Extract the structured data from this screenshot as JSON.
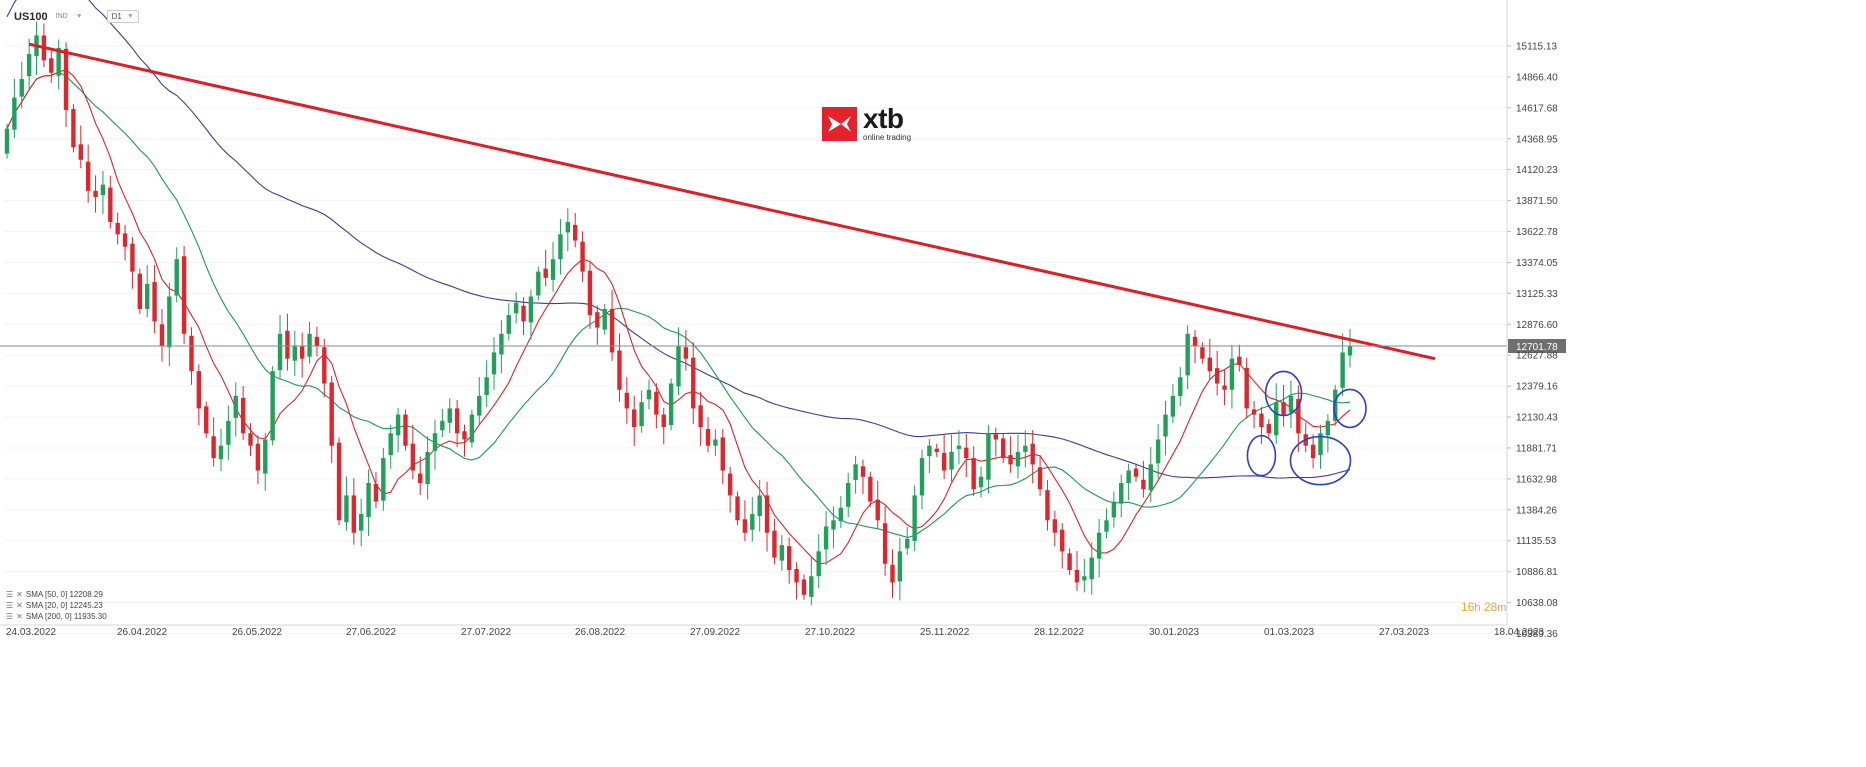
{
  "header": {
    "symbol": "US100",
    "market": "IND",
    "timeframe": "D1"
  },
  "logo": {
    "name": "xtb",
    "tagline": "online trading"
  },
  "legend": [
    {
      "label": "SMA  [50, 0]  12208.29",
      "color": "#1a9a5a"
    },
    {
      "label": "SMA  [20, 0]  12245.23",
      "color": "#e02424"
    },
    {
      "label": "SMA  [200, 0]  11935.30",
      "color": "#3b3f8f"
    }
  ],
  "timer": {
    "hours": "16",
    "h_unit": "h",
    "minutes": "28",
    "m_unit": "m"
  },
  "chart_data": {
    "type": "candlestick",
    "y_ticks": [
      "15115.13",
      "14866.40",
      "14617.68",
      "14368.95",
      "14120.23",
      "13871.50",
      "13622.78",
      "13374.05",
      "13125.33",
      "12876.60",
      "12627.88",
      "12379.16",
      "12130.43",
      "11881.71",
      "11632.98",
      "11384.26",
      "11135.53",
      "10886.81",
      "10638.08",
      "10389.36"
    ],
    "x_ticks": [
      "24.03.2022",
      "26.04.2022",
      "26.05.2022",
      "27.06.2022",
      "27.07.2022",
      "26.08.2022",
      "27.09.2022",
      "27.10.2022",
      "25.11.2022",
      "28.12.2022",
      "30.01.2023",
      "01.03.2023",
      "27.03.2023",
      "18.04.2023"
    ],
    "ylim": [
      10389.36,
      15115.13
    ],
    "current_price": "12701.78",
    "closes": [
      14450,
      14700,
      14850,
      15050,
      15200,
      15000,
      14900,
      15100,
      14600,
      14300,
      14200,
      13950,
      13900,
      14000,
      13700,
      13600,
      13500,
      13300,
      13000,
      13200,
      12900,
      12700,
      13100,
      13400,
      12800,
      12500,
      12200,
      12000,
      11800,
      11900,
      12100,
      12300,
      12000,
      11900,
      11700,
      11950,
      12500,
      12800,
      12600,
      12700,
      12600,
      12800,
      12700,
      12400,
      11900,
      11300,
      11500,
      11200,
      11350,
      11600,
      11450,
      11800,
      12000,
      12150,
      11900,
      11700,
      11600,
      11850,
      12000,
      12100,
      12200,
      12000,
      11950,
      12150,
      12300,
      12450,
      12650,
      12800,
      12950,
      13050,
      12900,
      13100,
      13300,
      13250,
      13400,
      13600,
      13700,
      13550,
      13300,
      12950,
      12850,
      13000,
      12650,
      12350,
      12200,
      12050,
      12250,
      12350,
      12150,
      12050,
      12400,
      12700,
      12600,
      12200,
      12050,
      11900,
      11950,
      11700,
      11500,
      11300,
      11200,
      11350,
      11500,
      11200,
      11000,
      11100,
      10900,
      10800,
      10700,
      10850,
      11050,
      11250,
      11300,
      11400,
      11600,
      11750,
      11650,
      11450,
      11300,
      10950,
      10800,
      11050,
      11150,
      11500,
      11800,
      11900,
      11850,
      11700,
      11850,
      11900,
      11800,
      11550,
      11650,
      12000,
      11950,
      11800,
      11750,
      11850,
      11900,
      11750,
      11550,
      11300,
      11200,
      11050,
      10900,
      10800,
      10850,
      11000,
      11200,
      11300,
      11450,
      11600,
      11700,
      11650,
      11550,
      11750,
      11950,
      12150,
      12300,
      12450,
      12800,
      12700,
      12600,
      12500,
      12400,
      12350,
      12600,
      12550,
      12200,
      12150,
      12050,
      12000,
      12250,
      12150,
      12300,
      12000,
      11900,
      11800,
      12000,
      12100,
      12350,
      12650,
      12701.78
    ],
    "sma20_label": "SMA [20, 0] 12245.23",
    "sma50_label": "SMA [50, 0] 12208.29",
    "sma200_label": "SMA [200, 0] 11935.30",
    "trendline": {
      "from": 15130,
      "to": 12600
    },
    "annotations": [
      "circle",
      "circle",
      "circle",
      "circle"
    ]
  }
}
